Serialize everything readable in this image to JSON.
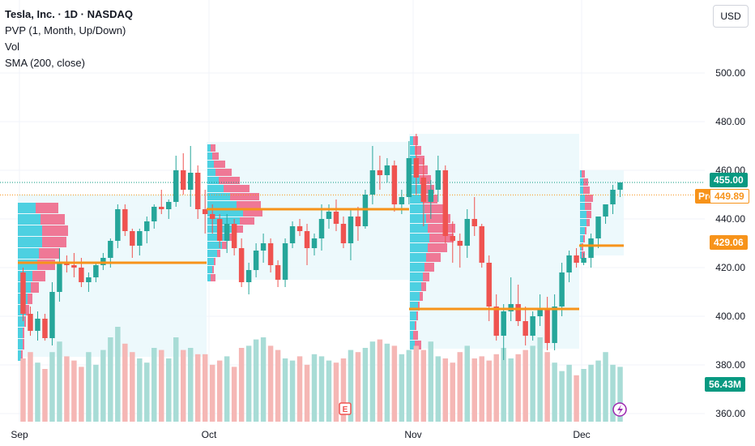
{
  "legend": {
    "symbol": "Tesla, Inc. · 1D · NASDAQ",
    "pvp": "PVP (1, Month, Up/Down)",
    "vol": "Vol",
    "sma": "SMA (200, close)"
  },
  "currency_button": "USD",
  "price_axis": {
    "ticks": [
      "500.00",
      "480.00",
      "460.00",
      "440.00",
      "420.00",
      "400.00",
      "380.00",
      "360.00"
    ],
    "last_price": "455.00",
    "pre_label": "Pre",
    "pre_price": "449.89",
    "level_label": "429.06",
    "volume_label": "56.43M"
  },
  "earnings_marker": "E",
  "colors": {
    "up": "#26a69a",
    "down": "#ef5350",
    "orange": "#f7931a",
    "profile_up": "#4dd0e1",
    "profile_down": "#ef7896"
  },
  "chart_data": {
    "type": "candlestick",
    "title": "Tesla, Inc. · 1D · NASDAQ",
    "ylim": [
      355,
      512
    ],
    "x_ticks": [
      "Sep",
      "Oct",
      "Nov",
      "Dec"
    ],
    "ohlc": [
      [
        418,
        420,
        398,
        401
      ],
      [
        401,
        404,
        392,
        394
      ],
      [
        394,
        402,
        390,
        399
      ],
      [
        399,
        401,
        390,
        391
      ],
      [
        391,
        414,
        388,
        410
      ],
      [
        410,
        428,
        406,
        422
      ],
      [
        422,
        425,
        418,
        421
      ],
      [
        421,
        426,
        416,
        420
      ],
      [
        420,
        424,
        412,
        414
      ],
      [
        414,
        418,
        410,
        416
      ],
      [
        416,
        422,
        414,
        421
      ],
      [
        421,
        426,
        419,
        424
      ],
      [
        424,
        432,
        420,
        431
      ],
      [
        431,
        446,
        428,
        444
      ],
      [
        444,
        446,
        433,
        435
      ],
      [
        435,
        436,
        424,
        429
      ],
      [
        429,
        436,
        425,
        435
      ],
      [
        435,
        441,
        430,
        439
      ],
      [
        439,
        446,
        436,
        445
      ],
      [
        445,
        452,
        442,
        444
      ],
      [
        444,
        448,
        440,
        447
      ],
      [
        447,
        466,
        445,
        460
      ],
      [
        460,
        467,
        450,
        452
      ],
      [
        452,
        470,
        445,
        459
      ],
      [
        459,
        462,
        440,
        444
      ],
      [
        444,
        452,
        434,
        442
      ],
      [
        442,
        446,
        434,
        440
      ],
      [
        440,
        442,
        428,
        431
      ],
      [
        431,
        442,
        426,
        438
      ],
      [
        438,
        440,
        425,
        428
      ],
      [
        428,
        432,
        412,
        414
      ],
      [
        414,
        422,
        409,
        419
      ],
      [
        419,
        430,
        416,
        427
      ],
      [
        427,
        434,
        422,
        430
      ],
      [
        430,
        432,
        418,
        421
      ],
      [
        421,
        423,
        412,
        415
      ],
      [
        415,
        432,
        412,
        430
      ],
      [
        430,
        439,
        428,
        437
      ],
      [
        437,
        440,
        433,
        435
      ],
      [
        435,
        438,
        421,
        428
      ],
      [
        428,
        434,
        425,
        432
      ],
      [
        432,
        446,
        427,
        440
      ],
      [
        440,
        446,
        436,
        443
      ],
      [
        443,
        448,
        435,
        438
      ],
      [
        438,
        441,
        428,
        430
      ],
      [
        430,
        444,
        423,
        441
      ],
      [
        441,
        445,
        431,
        437
      ],
      [
        437,
        452,
        436,
        450
      ],
      [
        450,
        470,
        446,
        460
      ],
      [
        460,
        466,
        452,
        458
      ],
      [
        458,
        465,
        455,
        462
      ],
      [
        462,
        464,
        443,
        446
      ],
      [
        446,
        452,
        442,
        449
      ],
      [
        449,
        472,
        446,
        465
      ],
      [
        465,
        475,
        450,
        457
      ],
      [
        457,
        465,
        437,
        447
      ],
      [
        447,
        456,
        440,
        452
      ],
      [
        452,
        466,
        447,
        460
      ],
      [
        460,
        462,
        430,
        433
      ],
      [
        433,
        439,
        422,
        431
      ],
      [
        431,
        434,
        420,
        429
      ],
      [
        429,
        444,
        424,
        440
      ],
      [
        440,
        449,
        433,
        437
      ],
      [
        437,
        438,
        420,
        422
      ],
      [
        422,
        425,
        398,
        404
      ],
      [
        404,
        409,
        390,
        392
      ],
      [
        392,
        405,
        382,
        402
      ],
      [
        402,
        416,
        398,
        405
      ],
      [
        405,
        413,
        396,
        398
      ],
      [
        398,
        404,
        388,
        392
      ],
      [
        392,
        402,
        390,
        400
      ],
      [
        400,
        409,
        396,
        403
      ],
      [
        403,
        408,
        386,
        389
      ],
      [
        389,
        409,
        386,
        404
      ],
      [
        404,
        422,
        400,
        418
      ],
      [
        418,
        427,
        414,
        425
      ],
      [
        425,
        428,
        420,
        422
      ],
      [
        422,
        426,
        421,
        424
      ],
      [
        424,
        434,
        420,
        432
      ],
      [
        432,
        440,
        428,
        441
      ],
      [
        441,
        446,
        438,
        446
      ],
      [
        446,
        454,
        442,
        452
      ],
      [
        452,
        455,
        449,
        455
      ]
    ],
    "volume": [
      30,
      33,
      28,
      25,
      33,
      38,
      31,
      29,
      26,
      33,
      27,
      34,
      40,
      45,
      37,
      33,
      30,
      28,
      35,
      34,
      30,
      40,
      34,
      35,
      32,
      32,
      27,
      29,
      31,
      26,
      35,
      36,
      39,
      40,
      36,
      34,
      30,
      29,
      31,
      27,
      32,
      31,
      29,
      28,
      30,
      34,
      33,
      35,
      38,
      39,
      37,
      36,
      32,
      34,
      36,
      34,
      38,
      31,
      30,
      28,
      33,
      36,
      30,
      31,
      29,
      32,
      35,
      30,
      32,
      34,
      36,
      40,
      33,
      28,
      24,
      27,
      22,
      25,
      27,
      29,
      33,
      27,
      26
    ],
    "sma_level": 429.06,
    "last_price": 455.0,
    "premarket_price": 449.89
  }
}
